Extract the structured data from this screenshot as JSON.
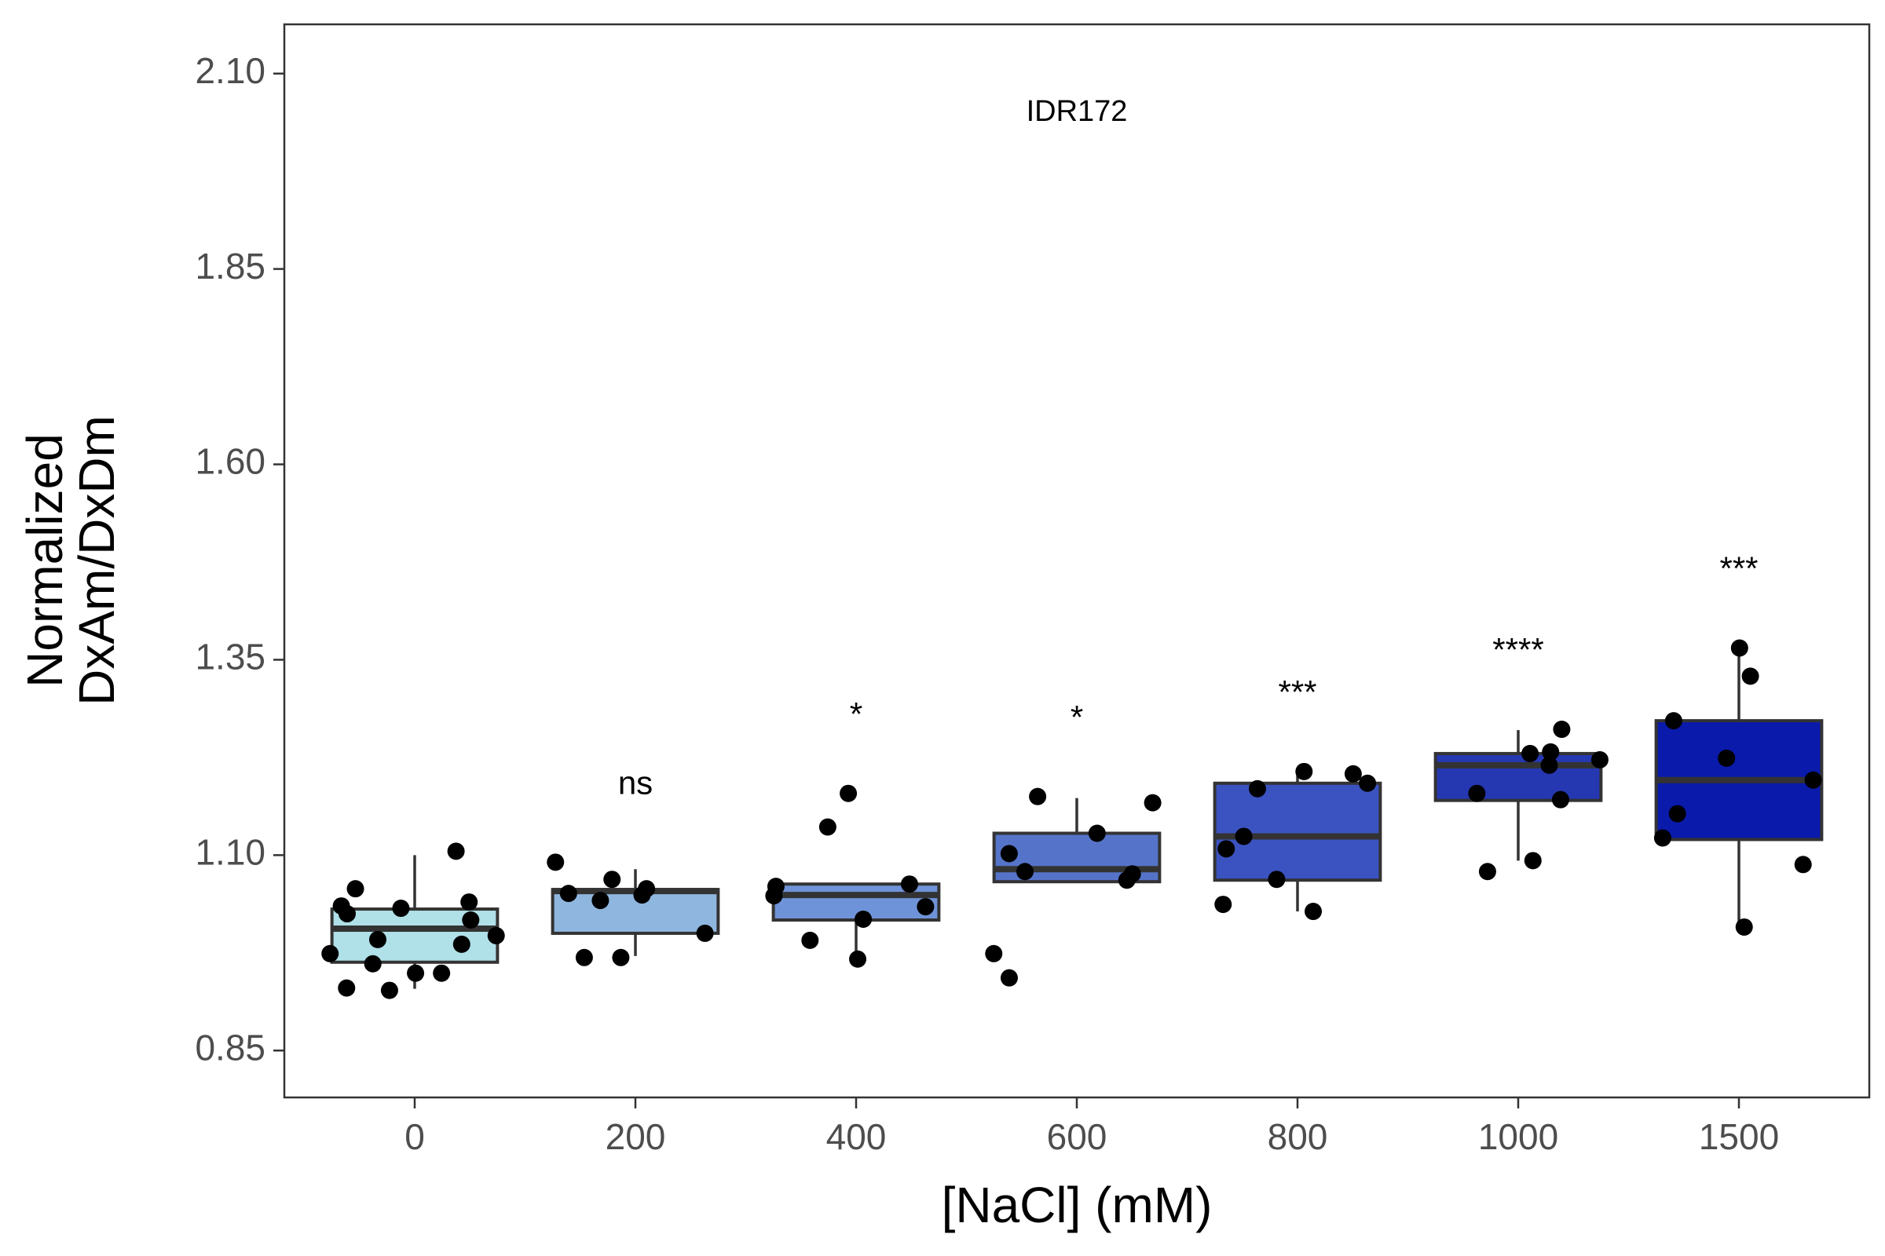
{
  "chart_data": {
    "type": "box",
    "title": "IDR172",
    "x_label": "[NaCl] (mM)",
    "y_label": [
      "Normalized",
      "DxAm/DxDm"
    ],
    "ylim": [
      0.79,
      2.163
    ],
    "yticks": [
      0.85,
      {
        "value": 1.1,
        "label": "1.10"
      },
      1.35,
      {
        "value": 1.6,
        "label": "1.60"
      },
      1.85,
      {
        "value": 2.1,
        "label": "2.10"
      }
    ],
    "categories": [
      "0",
      "200",
      "400",
      "600",
      "800",
      "1000",
      "1500"
    ],
    "boxes": [
      {
        "color": "#b0e0e8",
        "whisker_low": 0.929,
        "q1": 0.963,
        "median": 1.006,
        "q3": 1.031,
        "whisker_high": 1.1,
        "points": [
          1.105,
          1.035,
          1.032,
          1.017,
          1.057,
          1.04,
          1.025,
          0.997,
          0.992,
          0.986,
          0.974,
          0.961,
          0.949,
          0.949,
          0.93,
          0.927
        ]
      },
      {
        "color": "#8fb6de",
        "whisker_low": 0.971,
        "q1": 1.0,
        "median": 1.054,
        "q3": 1.056,
        "whisker_high": 1.082,
        "points": [
          1.057,
          1.069,
          1.042,
          1.049,
          1.051,
          1.091,
          1.0,
          0.969,
          0.969
        ],
        "annotation": "ns"
      },
      {
        "color": "#6f93d8",
        "whisker_low": 0.967,
        "q1": 1.017,
        "median": 1.049,
        "q3": 1.063,
        "whisker_high": 1.063,
        "points": [
          1.179,
          1.136,
          1.034,
          1.06,
          1.063,
          1.048,
          1.018,
          0.991,
          0.967
        ],
        "annotation": "*"
      },
      {
        "color": "#5574c9",
        "whisker_low": 1.066,
        "q1": 1.066,
        "median": 1.082,
        "q3": 1.128,
        "whisker_high": 1.173,
        "points": [
          1.175,
          1.167,
          1.128,
          1.102,
          1.079,
          1.076,
          1.068,
          0.974,
          0.943
        ],
        "annotation": "*"
      },
      {
        "color": "#3b53c0",
        "whisker_low": 1.028,
        "q1": 1.068,
        "median": 1.124,
        "q3": 1.192,
        "whisker_high": 1.205,
        "points": [
          1.204,
          1.207,
          1.192,
          1.185,
          1.124,
          1.108,
          1.069,
          1.037,
          1.028
        ],
        "annotation": "***"
      },
      {
        "color": "#2538b1",
        "whisker_low": 1.093,
        "q1": 1.17,
        "median": 1.215,
        "q3": 1.23,
        "whisker_high": 1.26,
        "points": [
          1.261,
          1.23,
          1.232,
          1.222,
          1.215,
          1.179,
          1.171,
          1.093,
          1.079
        ],
        "annotation": "****"
      },
      {
        "color": "#0a1aab",
        "whisker_low": 1.008,
        "q1": 1.12,
        "median": 1.196,
        "q3": 1.272,
        "whisker_high": 1.365,
        "points": [
          1.365,
          1.329,
          1.272,
          1.224,
          1.196,
          1.153,
          1.122,
          1.088,
          1.008
        ],
        "annotation": "***"
      }
    ]
  }
}
